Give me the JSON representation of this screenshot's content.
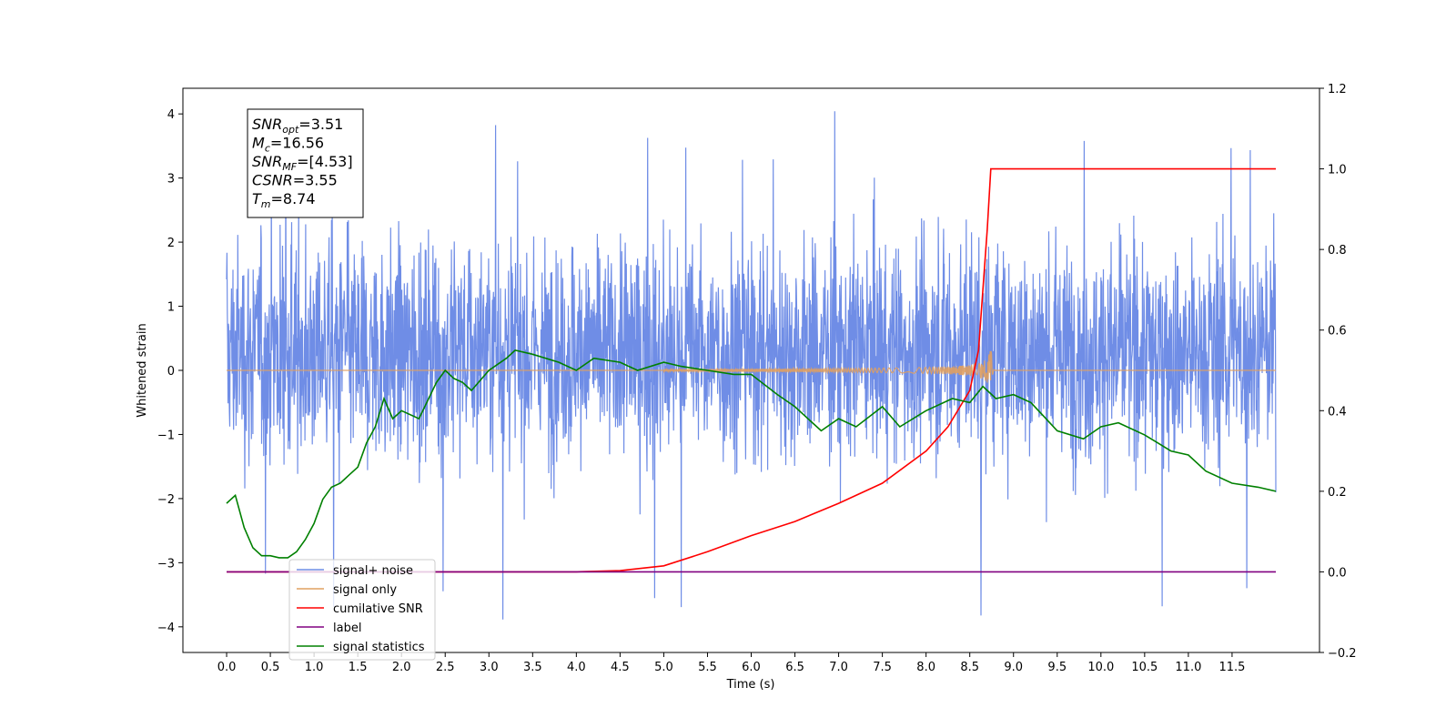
{
  "chart_data": {
    "type": "line",
    "xlabel": "Time (s)",
    "ylabel_left": "Whitened strain",
    "ylabel_right": "",
    "xlim": [
      -0.5,
      12.5
    ],
    "ylim_left": [
      -4.4,
      4.4
    ],
    "ylim_right": [
      -0.2,
      1.2
    ],
    "x_ticks": [
      "0.0",
      "0.5",
      "1.0",
      "1.5",
      "2.0",
      "2.5",
      "3.0",
      "3.5",
      "4.0",
      "4.5",
      "5.0",
      "5.5",
      "6.0",
      "6.5",
      "7.0",
      "7.5",
      "8.0",
      "8.5",
      "9.0",
      "9.5",
      "10.0",
      "10.5",
      "11.0",
      "11.5"
    ],
    "y_left_ticks": [
      "-4",
      "-3",
      "-2",
      "-1",
      "0",
      "1",
      "2",
      "3",
      "4"
    ],
    "y_right_ticks": [
      "-0.2",
      "0.0",
      "0.2",
      "0.4",
      "0.6",
      "0.8",
      "1.0",
      "1.2"
    ],
    "grid": false,
    "legend_position": "bottom-left",
    "info_box": {
      "lines": [
        {
          "sym": "SNR",
          "sub": "opt",
          "value": "=3.51"
        },
        {
          "sym": "M",
          "sub": "c",
          "value": "=16.56"
        },
        {
          "sym": "SNR",
          "sub": "MF",
          "value": "=[4.53]"
        },
        {
          "sym": "CSNR",
          "sub": "",
          "value": "=3.55"
        },
        {
          "sym": "T",
          "sub": "m",
          "value": "=8.74"
        }
      ]
    },
    "series": [
      {
        "name": "signal+ noise",
        "axis": "left",
        "color": "#6f8de6",
        "kind": "noise",
        "x_range": [
          0,
          12
        ],
        "typical_range": [
          -1.6,
          2.3
        ],
        "extremes": [
          -3.9,
          4.1
        ]
      },
      {
        "name": "signal only",
        "axis": "left",
        "color": "#e0a060",
        "kind": "chirp",
        "merger_time": 8.74,
        "peak_amplitude": 0.65
      },
      {
        "name": "cumilative SNR",
        "axis": "right",
        "color": "#ff0000",
        "x": [
          0,
          4,
          4.5,
          5,
          5.5,
          6,
          6.5,
          7,
          7.5,
          8,
          8.25,
          8.5,
          8.6,
          8.65,
          8.7,
          8.74,
          12
        ],
        "y": [
          0,
          0,
          0.003,
          0.015,
          0.05,
          0.09,
          0.125,
          0.17,
          0.22,
          0.3,
          0.36,
          0.45,
          0.55,
          0.7,
          0.85,
          1.0,
          1.0
        ]
      },
      {
        "name": "label",
        "axis": "right",
        "color": "#800080",
        "x": [
          0,
          12
        ],
        "y": [
          0.0,
          0.0
        ]
      },
      {
        "name": "signal statistics",
        "axis": "right",
        "color": "#008000",
        "x": [
          0,
          0.1,
          0.2,
          0.3,
          0.4,
          0.5,
          0.6,
          0.7,
          0.8,
          0.9,
          1.0,
          1.1,
          1.2,
          1.3,
          1.4,
          1.5,
          1.6,
          1.7,
          1.8,
          1.9,
          2.0,
          2.2,
          2.4,
          2.5,
          2.6,
          2.7,
          2.8,
          3.0,
          3.2,
          3.3,
          3.5,
          3.8,
          4.0,
          4.2,
          4.5,
          4.7,
          5.0,
          5.2,
          5.5,
          5.8,
          6.0,
          6.3,
          6.5,
          6.8,
          7.0,
          7.2,
          7.5,
          7.7,
          8.0,
          8.3,
          8.5,
          8.65,
          8.8,
          9.0,
          9.2,
          9.5,
          9.8,
          10.0,
          10.2,
          10.5,
          10.8,
          11.0,
          11.2,
          11.5,
          11.8,
          12.0
        ],
        "y": [
          0.17,
          0.19,
          0.11,
          0.06,
          0.04,
          0.04,
          0.035,
          0.035,
          0.05,
          0.08,
          0.12,
          0.18,
          0.21,
          0.22,
          0.24,
          0.26,
          0.32,
          0.36,
          0.43,
          0.38,
          0.4,
          0.38,
          0.47,
          0.5,
          0.48,
          0.47,
          0.45,
          0.5,
          0.53,
          0.55,
          0.54,
          0.52,
          0.5,
          0.53,
          0.52,
          0.5,
          0.52,
          0.51,
          0.5,
          0.49,
          0.49,
          0.44,
          0.41,
          0.35,
          0.38,
          0.36,
          0.41,
          0.36,
          0.4,
          0.43,
          0.42,
          0.46,
          0.43,
          0.44,
          0.42,
          0.35,
          0.33,
          0.36,
          0.37,
          0.34,
          0.3,
          0.29,
          0.25,
          0.22,
          0.21,
          0.2
        ]
      }
    ]
  }
}
